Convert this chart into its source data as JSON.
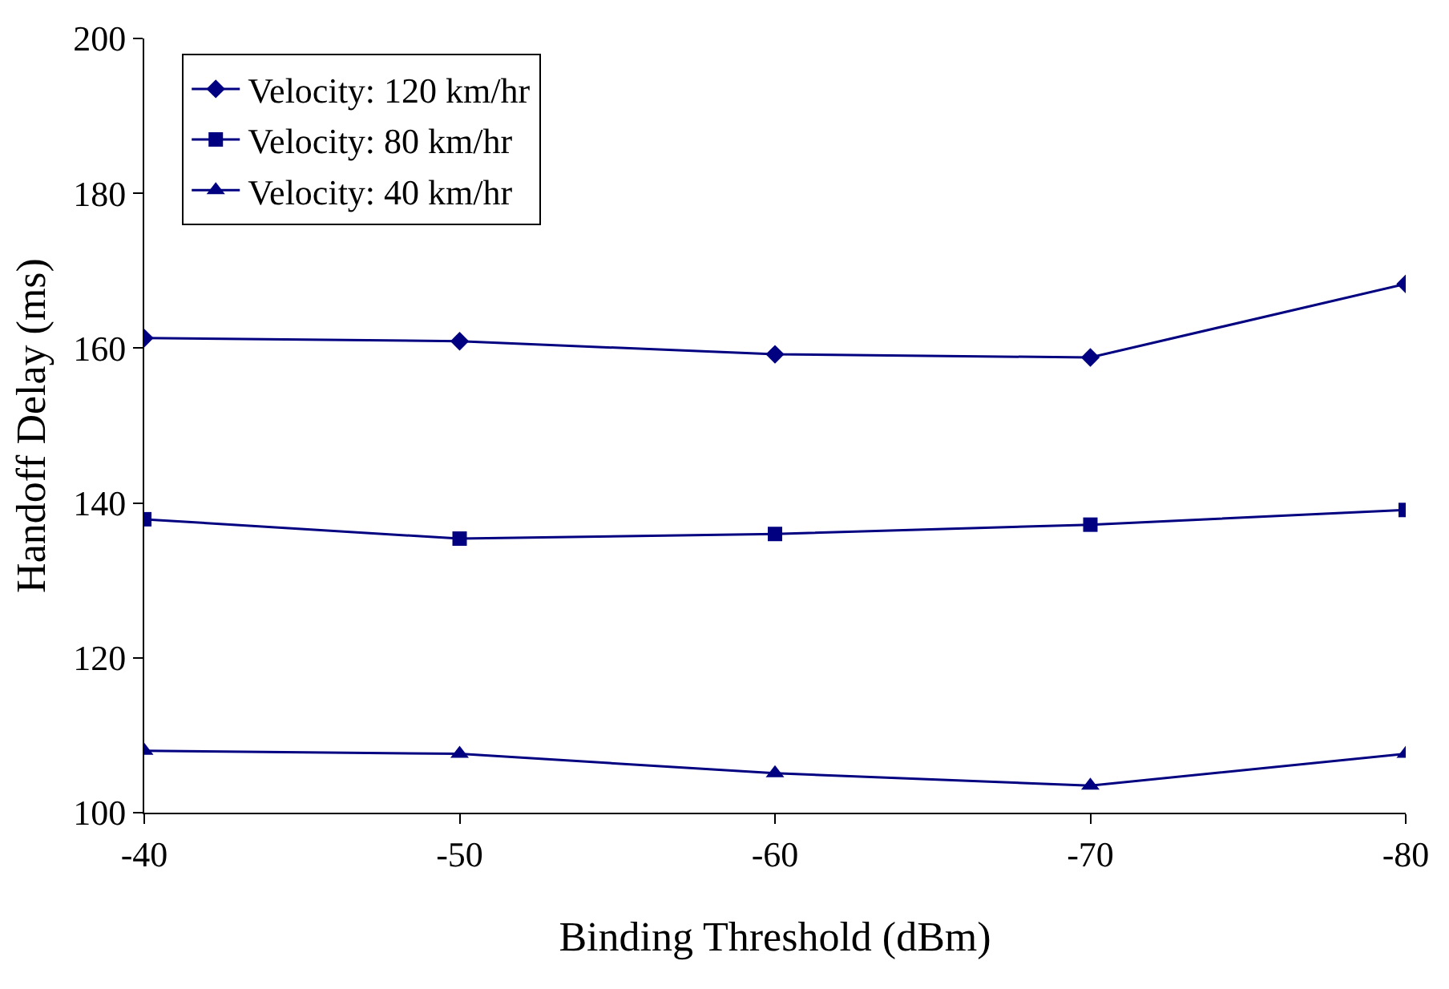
{
  "chart_data": {
    "type": "line",
    "xlabel": "Binding Threshold (dBm)",
    "ylabel": "Handoff Delay (ms)",
    "x": [
      -40,
      -50,
      -60,
      -70,
      -80
    ],
    "xlim": [
      -40,
      -80
    ],
    "xticks": [
      -40,
      -50,
      -60,
      -70,
      -80
    ],
    "ylim": [
      100,
      200
    ],
    "yticks": [
      100,
      120,
      140,
      160,
      180,
      200
    ],
    "grid": false,
    "legend": "top left",
    "line_style": "solid",
    "series": [
      {
        "name": "Velocity: 120 km/hr",
        "color": "#000080",
        "marker": "diamond",
        "values": [
          161.3,
          160.9,
          159.2,
          158.8,
          168.3
        ]
      },
      {
        "name": "Velocity: 80 km/hr",
        "color": "#000080",
        "marker": "square",
        "values": [
          137.9,
          135.4,
          136.0,
          137.2,
          139.1
        ]
      },
      {
        "name": "Velocity: 40 km/hr",
        "color": "#000080",
        "marker": "triangle",
        "values": [
          108.0,
          107.6,
          105.1,
          103.5,
          107.6
        ]
      }
    ]
  }
}
